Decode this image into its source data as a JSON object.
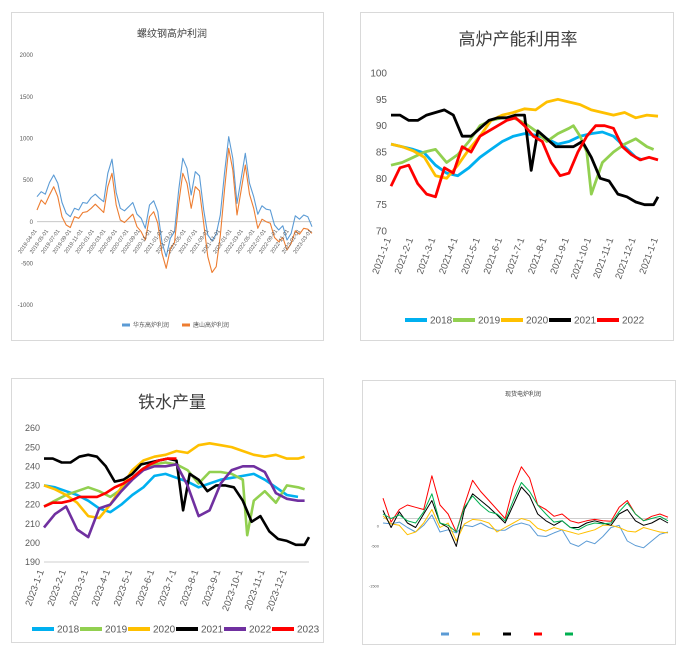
{
  "chart_data": [
    {
      "type": "line",
      "title": "螺纹钢高炉利润",
      "y_ticks": [
        "2000",
        "1500",
        "1000",
        "500",
        "0",
        "-500",
        "-1000"
      ],
      "ylim": [
        -1000,
        2000
      ],
      "x_ticks": [
        "2019-04-01",
        "2019-05-01",
        "2019-07-01",
        "2019-09-01",
        "2019-11-01",
        "2020-01-01",
        "2020-03-01",
        "2020-05-01",
        "2020-07-01",
        "2020-09-01",
        "2020-11-01",
        "2021-01-01",
        "2021-03-01",
        "2021-05-01",
        "2021-07-01",
        "2021-09-01",
        "2021-11-01",
        "2022-01-01",
        "2022-03-01",
        "2022-05-01",
        "2022-07-01",
        "2022-09-01",
        "2022-11-01",
        "2023-01-01",
        "2023-03-01"
      ],
      "series": [
        {
          "name": "华东高炉利润",
          "color": "#5b9bd5",
          "values": [
            300,
            360,
            330,
            470,
            560,
            460,
            230,
            100,
            60,
            160,
            140,
            230,
            220,
            290,
            330,
            280,
            240,
            580,
            750,
            350,
            160,
            130,
            180,
            230,
            90,
            40,
            -80,
            200,
            250,
            120,
            -250,
            -420,
            -200,
            -120,
            380,
            760,
            640,
            320,
            600,
            550,
            140,
            -160,
            -230,
            -150,
            80,
            580,
            1020,
            760,
            220,
            520,
            820,
            460,
            300,
            90,
            190,
            150,
            140,
            -40,
            -100,
            -50,
            -220,
            -140,
            70,
            30,
            80,
            60,
            -60
          ]
        },
        {
          "name": "唐山高炉利润",
          "color": "#ed7d31",
          "values": [
            140,
            260,
            210,
            320,
            420,
            300,
            60,
            -40,
            -70,
            60,
            40,
            110,
            120,
            160,
            210,
            160,
            110,
            420,
            580,
            200,
            20,
            -10,
            40,
            90,
            -60,
            -120,
            -220,
            60,
            120,
            -20,
            -380,
            -560,
            -330,
            -250,
            220,
            580,
            460,
            160,
            420,
            370,
            -20,
            -420,
            -610,
            -540,
            -170,
            380,
            880,
            620,
            80,
            380,
            680,
            330,
            160,
            -80,
            30,
            0,
            -20,
            -190,
            -240,
            -190,
            -340,
            -260,
            -110,
            -150,
            -80,
            -90,
            -140
          ]
        }
      ]
    },
    {
      "type": "line",
      "title": "高炉产能利用率",
      "y_ticks": [
        "100",
        "95",
        "90",
        "85",
        "80",
        "75",
        "70"
      ],
      "ylim": [
        70,
        100
      ],
      "x_ticks": [
        "2021-1-1",
        "2021-2-1",
        "2021-3-1",
        "2021-4-1",
        "2021-5-1",
        "2021-6-1",
        "2021-7-1",
        "2021-8-1",
        "2021-9-1",
        "2021-10-1",
        "2021-11-1",
        "2021-12-1",
        "2021-1-1"
      ],
      "x_range": [
        1,
        13
      ],
      "series": [
        {
          "name": "2018",
          "color": "#00b0f0",
          "x": [
            1,
            1.5,
            2,
            2.5,
            3,
            3.5,
            4,
            4.5,
            5,
            5.5,
            6,
            6.5,
            7,
            7.5,
            8,
            8.5,
            9,
            9.5,
            10,
            10.5,
            11,
            11.5,
            12,
            12.3
          ],
          "values": [
            86.5,
            86,
            85.5,
            84.8,
            82.5,
            81,
            80.5,
            82,
            84,
            85.5,
            87,
            88,
            88.5,
            88.2,
            87.5,
            86.5,
            87,
            88,
            88.5,
            88.8,
            88,
            86,
            84,
            83.5
          ]
        },
        {
          "name": "2019",
          "color": "#92d050",
          "x": [
            1,
            1.5,
            2,
            2.5,
            3,
            3.5,
            4,
            4.5,
            5,
            5.5,
            6,
            6.5,
            7,
            7.5,
            8,
            8.5,
            9,
            9.2,
            9.5,
            9.8,
            10,
            10.5,
            11,
            11.5,
            12,
            12.5,
            12.8
          ],
          "values": [
            82.5,
            83,
            84,
            85,
            85.5,
            83,
            84.5,
            87,
            90,
            91,
            91.5,
            91.5,
            90.5,
            89,
            87,
            88.5,
            89.5,
            90,
            88,
            85,
            77,
            83,
            85,
            86.5,
            87.5,
            86,
            85.5
          ]
        },
        {
          "name": "2020",
          "color": "#ffc000",
          "x": [
            1,
            1.5,
            2,
            2.5,
            3,
            3.5,
            4,
            4.5,
            5,
            5.5,
            6,
            6.5,
            7,
            7.5,
            8,
            8.5,
            9,
            9.5,
            10,
            10.5,
            11,
            11.5,
            12,
            12.5,
            13
          ],
          "values": [
            86.5,
            86,
            85.2,
            84,
            80.5,
            80,
            82.5,
            85.5,
            88,
            91,
            92,
            92.5,
            93.2,
            93,
            94.5,
            95,
            94.5,
            94,
            93,
            92.5,
            92,
            92.5,
            91.5,
            92,
            91.8
          ]
        },
        {
          "name": "2021",
          "color": "#000000",
          "x": [
            1,
            1.4,
            1.8,
            2.2,
            2.6,
            3,
            3.4,
            3.8,
            4.2,
            4.6,
            5,
            5.4,
            5.8,
            6.2,
            6.6,
            7,
            7.3,
            7.6,
            8,
            8.4,
            8.8,
            9.2,
            9.6,
            10,
            10.4,
            10.8,
            11.2,
            11.6,
            12,
            12.4,
            12.8,
            13
          ],
          "values": [
            92,
            92,
            91,
            91,
            92,
            92.5,
            93,
            92,
            88,
            88,
            89.5,
            91,
            91.5,
            91.5,
            92,
            92,
            81.5,
            89,
            87.5,
            86,
            86,
            86,
            87,
            84,
            80,
            79.5,
            77,
            76.5,
            75.5,
            75,
            75,
            76.5
          ]
        },
        {
          "name": "2022",
          "color": "#ff0000",
          "x": [
            1,
            1.4,
            1.8,
            2.2,
            2.6,
            3,
            3.4,
            3.8,
            4.2,
            4.6,
            5,
            5.4,
            5.8,
            6.2,
            6.6,
            7,
            7.4,
            7.8,
            8.2,
            8.6,
            9,
            9.4,
            9.8,
            10.2,
            10.6,
            11,
            11.4,
            11.8,
            12.2,
            12.6,
            13
          ],
          "values": [
            78.5,
            82,
            82.5,
            79,
            77,
            76.5,
            82,
            81,
            86,
            85,
            88,
            89,
            90,
            91,
            91.5,
            90,
            88,
            87,
            83,
            80.5,
            81,
            85,
            88,
            90,
            90,
            89.5,
            86,
            84.5,
            83.5,
            84,
            83.5
          ]
        }
      ]
    },
    {
      "type": "line",
      "title": "铁水产量",
      "y_ticks": [
        "260",
        "250",
        "240",
        "230",
        "220",
        "210",
        "200",
        "190"
      ],
      "ylim": [
        190,
        260
      ],
      "x_ticks": [
        "2023-1-1",
        "2023-2-1",
        "2023-3-1",
        "2023-4-1",
        "2023-5-1",
        "2023-6-1",
        "2023-7-1",
        "2023-8-1",
        "2023-9-1",
        "2023-10-1",
        "2023-11-1",
        "2023-12-1"
      ],
      "x_range": [
        1,
        13
      ],
      "series": [
        {
          "name": "2018",
          "color": "#00b0f0",
          "x": [
            1,
            1.5,
            2,
            2.5,
            3,
            3.5,
            4,
            4.5,
            5,
            5.5,
            6,
            6.5,
            7,
            7.5,
            8,
            8.5,
            9,
            9.5,
            10,
            10.5,
            11,
            11.5,
            12,
            12.5
          ],
          "values": [
            230,
            229,
            227,
            225,
            222,
            218,
            216,
            220,
            225,
            229,
            235,
            236,
            234,
            232,
            229,
            231,
            233,
            234,
            235,
            236,
            233,
            229,
            225,
            224
          ]
        },
        {
          "name": "2019",
          "color": "#92d050",
          "x": [
            1,
            1.5,
            2,
            2.5,
            3,
            3.5,
            4,
            4.5,
            5,
            5.5,
            6,
            6.5,
            7,
            7.5,
            8,
            8.5,
            9,
            9.5,
            10,
            10.2,
            10.5,
            11,
            11.5,
            12,
            12.5,
            12.8
          ],
          "values": [
            219,
            222,
            225,
            227,
            229,
            227,
            224,
            228,
            234,
            239,
            241,
            242,
            241,
            238,
            231,
            237,
            237,
            236,
            233,
            204,
            222,
            227,
            221,
            230,
            229,
            228
          ]
        },
        {
          "name": "2020",
          "color": "#ffc000",
          "x": [
            1,
            1.5,
            2,
            2.5,
            3,
            3.5,
            4,
            4.5,
            5,
            5.5,
            6,
            6.5,
            7,
            7.5,
            8,
            8.5,
            9,
            9.5,
            10,
            10.5,
            11,
            11.5,
            12,
            12.5,
            12.8
          ],
          "values": [
            230,
            228,
            225,
            221,
            214,
            213,
            220,
            229,
            238,
            243,
            245,
            246,
            248,
            247,
            251,
            252,
            251,
            250,
            248,
            246,
            245,
            246,
            244,
            244,
            245
          ]
        },
        {
          "name": "2021",
          "color": "#000000",
          "x": [
            1,
            1.4,
            1.8,
            2.2,
            2.6,
            3,
            3.4,
            3.8,
            4.2,
            4.6,
            5,
            5.4,
            5.8,
            6.2,
            6.6,
            7,
            7.3,
            7.6,
            8,
            8.4,
            8.8,
            9.2,
            9.6,
            10,
            10.4,
            10.8,
            11.2,
            11.6,
            12,
            12.4,
            12.8,
            13
          ],
          "values": [
            244,
            244,
            242,
            242,
            245,
            246,
            245,
            240,
            232,
            233,
            236,
            241,
            242,
            243,
            244,
            243,
            217,
            236,
            233,
            227,
            230,
            230,
            229,
            222,
            211,
            214,
            206,
            202,
            201,
            199,
            199,
            203
          ]
        },
        {
          "name": "2022",
          "color": "#7030a0",
          "x": [
            1,
            1.5,
            2,
            2.5,
            3,
            3.5,
            4,
            4.5,
            5,
            5.5,
            6,
            6.5,
            7,
            7.5,
            8,
            8.5,
            9,
            9.5,
            10,
            10.5,
            11,
            11.5,
            12,
            12.5,
            12.8
          ],
          "values": [
            208,
            215,
            219,
            207,
            203,
            218,
            220,
            227,
            233,
            238,
            240,
            240,
            241,
            230,
            214,
            217,
            231,
            238,
            240,
            240,
            237,
            226,
            223,
            222,
            222
          ]
        },
        {
          "name": "2023",
          "color": "#ff0000",
          "x": [
            1,
            1.4,
            1.8,
            2.2,
            2.6,
            3,
            3.4,
            3.8,
            4.2,
            4.6,
            5,
            5.4,
            5.8,
            6.2,
            6.6,
            7
          ],
          "values": [
            219,
            221,
            221,
            222,
            224,
            224,
            224,
            226,
            229,
            231,
            234,
            238,
            241,
            243,
            244,
            244
          ]
        }
      ]
    },
    {
      "type": "line",
      "title": "现货电炉利润",
      "y_ticks": [
        "",
        "",
        "",
        "",
        "",
        "",
        "0",
        "-500",
        "",
        "-1500"
      ],
      "ylim": [
        -1500,
        2500
      ],
      "legend": [
        "",
        "",
        "",
        "",
        ""
      ],
      "series": [
        {
          "name": "",
          "color": "#5b9bd5",
          "values": [
            -100,
            -120,
            -80,
            -200,
            -300,
            -150,
            80,
            -300,
            -250,
            -320,
            -150,
            -180,
            -100,
            -200,
            -260,
            -260,
            -150,
            -100,
            -150,
            -380,
            -400,
            -320,
            -250,
            -550,
            -620,
            -500,
            -560,
            -400,
            -200,
            -150,
            -500,
            -600,
            -650,
            -500,
            -350,
            -300
          ]
        },
        {
          "name": "",
          "color": "#ffc000",
          "values": [
            60,
            -120,
            -150,
            -360,
            -300,
            -100,
            200,
            -200,
            -100,
            -500,
            -120,
            -20,
            -40,
            -100,
            -300,
            -200,
            -100,
            0,
            -50,
            -220,
            -280,
            -200,
            -250,
            -300,
            -350,
            -300,
            -250,
            -150,
            -150,
            -200,
            -280,
            -300,
            -200,
            -250,
            -300,
            -320
          ]
        },
        {
          "name": "",
          "color": "#000000",
          "values": [
            180,
            -200,
            150,
            -100,
            -200,
            100,
            400,
            -100,
            -200,
            -620,
            200,
            550,
            400,
            250,
            80,
            -100,
            300,
            700,
            500,
            100,
            -50,
            -150,
            -50,
            -200,
            -200,
            -100,
            -50,
            -100,
            -150,
            100,
            200,
            -50,
            -150,
            -100,
            0,
            -100
          ]
        },
        {
          "name": "",
          "color": "#ff0000",
          "values": [
            450,
            -80,
            200,
            300,
            250,
            200,
            950,
            300,
            100,
            -300,
            300,
            850,
            600,
            400,
            200,
            0,
            700,
            1150,
            900,
            300,
            200,
            50,
            100,
            -50,
            -100,
            -50,
            -20,
            -50,
            -60,
            250,
            400,
            100,
            -50,
            50,
            100,
            30
          ]
        },
        {
          "name": "",
          "color": "#00b050",
          "values": [
            100,
            0,
            80,
            -50,
            -100,
            150,
            550,
            -100,
            -150,
            -300,
            250,
            500,
            300,
            150,
            100,
            -50,
            400,
            800,
            600,
            300,
            100,
            -80,
            -50,
            -200,
            -250,
            -150,
            -100,
            -120,
            -100,
            150,
            350,
            100,
            -50,
            0,
            50,
            -50
          ]
        }
      ]
    }
  ]
}
